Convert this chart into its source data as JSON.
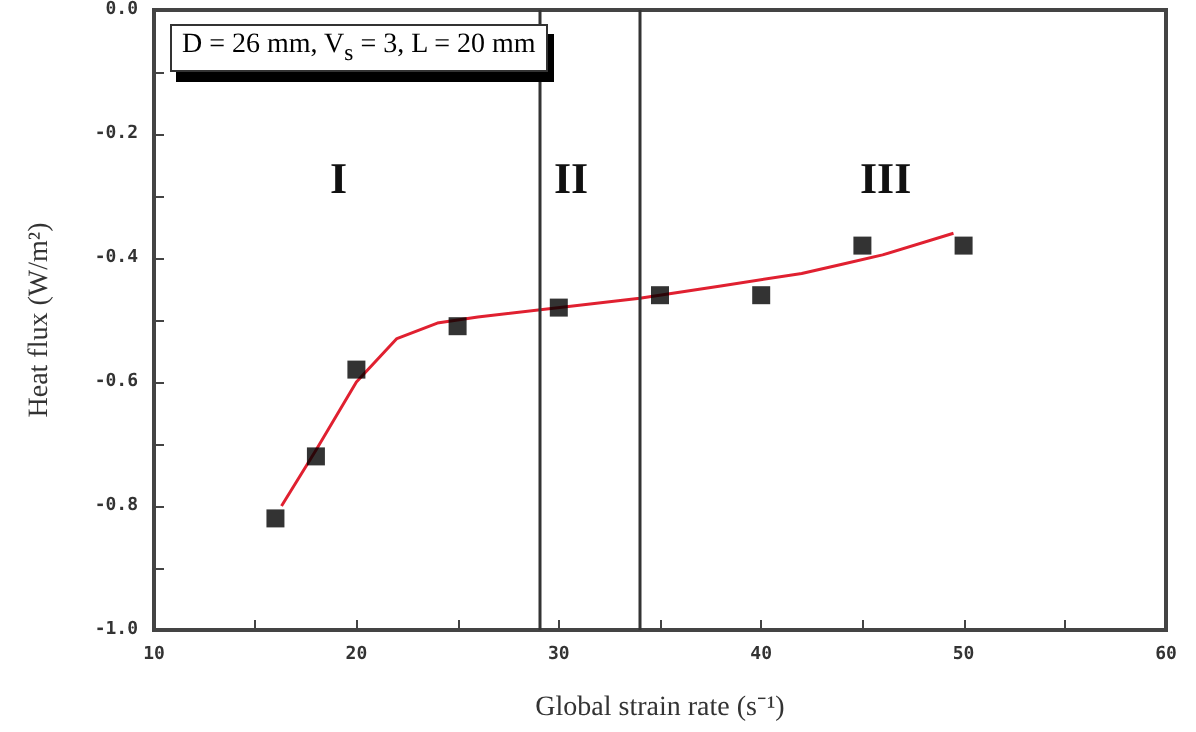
{
  "chart_data": {
    "type": "scatter",
    "xlabel": "Global strain rate (s⁻¹)",
    "ylabel": "Heat flux (W/m²)",
    "annotations": [
      "D = 26 mm, V$_{s}$ = 3, L = 20 mm",
      "I",
      "II",
      "III"
    ],
    "series": [
      {
        "color": "#000000",
        "marker": "square",
        "x": [
          16,
          18,
          20,
          25,
          30,
          35,
          40,
          45,
          50
        ],
        "values": [
          -0.82,
          -0.72,
          -0.58,
          -0.51,
          -0.48,
          -0.46,
          -0.46,
          -0.38,
          -0.38
        ]
      },
      {
        "type": "line",
        "color": "#e02030",
        "marker": "none",
        "line_style": "solid",
        "x": [
          16.3,
          18,
          20,
          22,
          24,
          26,
          34,
          38,
          42,
          44,
          46,
          49.5
        ],
        "values": [
          -0.8,
          -0.71,
          -0.6,
          -0.53,
          -0.505,
          -0.495,
          -0.465,
          -0.445,
          -0.425,
          -0.41,
          -0.395,
          -0.36
        ]
      }
    ],
    "ref_lines": [
      {
        "axis": "x",
        "value": 29,
        "color": "#333333"
      },
      {
        "axis": "x",
        "value": 34,
        "color": "#333333"
      }
    ],
    "xlim": [
      10,
      60
    ],
    "ylim": [
      -1,
      0
    ],
    "xticks": [
      10,
      {
        "value": 15,
        "label": null
      },
      20,
      {
        "value": 25,
        "label": null
      },
      30,
      {
        "value": 35,
        "label": null
      },
      40,
      {
        "value": 45,
        "label": null
      },
      50,
      {
        "value": 55,
        "label": null
      },
      60
    ],
    "yticks": [
      {
        "value": -1,
        "label": "-1.0"
      },
      {
        "value": -0.9,
        "label": null
      },
      {
        "value": -0.8,
        "label": "-0.8"
      },
      {
        "value": -0.7,
        "label": null
      },
      {
        "value": -0.6,
        "label": "-0.6"
      },
      {
        "value": -0.5,
        "label": null
      },
      {
        "value": -0.4,
        "label": "-0.4"
      },
      {
        "value": -0.3,
        "label": null
      },
      {
        "value": -0.2,
        "label": "-0.2"
      },
      {
        "value": -0.1,
        "label": null
      },
      {
        "value": 0,
        "label": "0.0"
      }
    ],
    "grid": false
  }
}
